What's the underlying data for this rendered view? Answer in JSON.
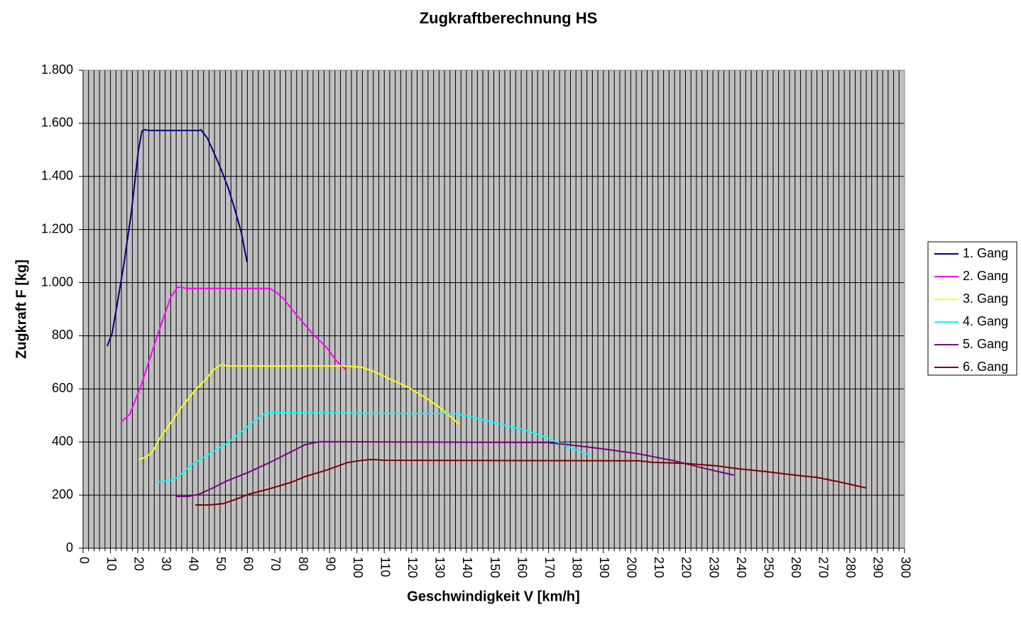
{
  "chart_data": {
    "type": "line",
    "title": "Zugkraftberechnung HS",
    "xlabel": "Geschwindigkeit V [km/h]",
    "ylabel": "Zugkraft F [kg]",
    "xlim": [
      0,
      300
    ],
    "ylim": [
      0,
      1800
    ],
    "xticks": [
      0,
      10,
      20,
      30,
      40,
      50,
      60,
      70,
      80,
      90,
      100,
      110,
      120,
      130,
      140,
      150,
      160,
      170,
      180,
      190,
      200,
      210,
      220,
      230,
      240,
      250,
      260,
      270,
      280,
      290,
      300
    ],
    "xminorticks": [
      2,
      4,
      6,
      8,
      12,
      14,
      16,
      18,
      22,
      24,
      26,
      28,
      32,
      34,
      36,
      38,
      42,
      44,
      46,
      48,
      52,
      54,
      56,
      58,
      62,
      64,
      66,
      68,
      72,
      74,
      76,
      78,
      82,
      84,
      86,
      88,
      92,
      94,
      96,
      98,
      102,
      104,
      106,
      108,
      112,
      114,
      116,
      118,
      122,
      124,
      126,
      128,
      132,
      134,
      136,
      138,
      142,
      144,
      146,
      148,
      152,
      154,
      156,
      158,
      162,
      164,
      166,
      168,
      172,
      174,
      176,
      178,
      182,
      184,
      186,
      188,
      192,
      194,
      196,
      198,
      202,
      204,
      206,
      208,
      212,
      214,
      216,
      218,
      222,
      224,
      226,
      228,
      232,
      234,
      236,
      238,
      242,
      244,
      246,
      248,
      252,
      254,
      256,
      258,
      262,
      264,
      266,
      268,
      272,
      274,
      276,
      278,
      282,
      284,
      286,
      288,
      292,
      294,
      296,
      298
    ],
    "yticks": [
      0,
      200,
      400,
      600,
      800,
      {
        "value": 1000,
        "label": "1.000"
      },
      {
        "value": 1200,
        "label": "1.200"
      },
      {
        "value": 1400,
        "label": "1.400"
      },
      {
        "value": 1600,
        "label": "1.600"
      },
      {
        "value": 1800,
        "label": "1.800"
      }
    ],
    "grid": true,
    "legend": "right",
    "series": [
      {
        "name": "1. Gang",
        "color": "#000080",
        "x": [
          8.8,
          10.6,
          12.4,
          15,
          17.6,
          20.2,
          21.5,
          22.3,
          24,
          42.3,
          43,
          45.4,
          47.4,
          50,
          53,
          55,
          57.8,
          59.9
        ],
        "values": [
          761,
          809,
          916,
          1076,
          1263,
          1498,
          1570,
          1576,
          1573,
          1573,
          1576,
          1544,
          1498,
          1437,
          1357,
          1290,
          1189,
          1076
        ]
      },
      {
        "name": "2. Gang",
        "color": "#ff00ff",
        "x": [
          13.7,
          17.1,
          21.5,
          26.7,
          31.9,
          34.5,
          35.8,
          37.6,
          68.2,
          70.8,
          73.4,
          76,
          78.6,
          83.7,
          88.9,
          92.8,
          96.2
        ],
        "values": [
          473,
          505,
          622,
          788,
          943,
          983,
          983,
          978,
          978,
          962,
          938,
          903,
          871,
          809,
          756,
          702,
          670
        ]
      },
      {
        "name": "3. Gang",
        "color": "#ffff00",
        "x": [
          20.2,
          22.8,
          25.4,
          28,
          31.9,
          35.8,
          41,
          44.9,
          47.4,
          50.6,
          52.6,
          96.7,
          101.9,
          107.1,
          112.3,
          118.7,
          125.2,
          130.4,
          134.3,
          137.4
        ],
        "values": [
          334,
          342,
          363,
          414,
          470,
          529,
          596,
          636,
          670,
          692,
          686,
          686,
          681,
          662,
          636,
          606,
          566,
          529,
          494,
          467
        ]
      },
      {
        "name": "4. Gang",
        "color": "#00ffff",
        "x": [
          26.7,
          31.9,
          34.5,
          39.7,
          47.4,
          52.6,
          59.1,
          63,
          66.9,
          69.5,
          135.6,
          140.8,
          151.2,
          161.3,
          169.3,
          177.1,
          185.2
        ],
        "values": [
          248,
          256,
          267,
          315,
          363,
          395,
          449,
          483,
          510,
          510,
          507,
          497,
          470,
          446,
          417,
          382,
          350
        ]
      },
      {
        "name": "5. Gang",
        "color": "#800080",
        "x": [
          34,
          38.4,
          42.3,
          47.4,
          52.6,
          60.4,
          68.2,
          76,
          81.1,
          86.3,
          169.3,
          177.1,
          190,
          203,
          216,
          226.3,
          237.7
        ],
        "values": [
          195,
          195,
          203,
          227,
          254,
          286,
          323,
          363,
          390,
          401,
          398,
          390,
          374,
          355,
          329,
          302,
          275
        ]
      },
      {
        "name": "6. Gang",
        "color": "#800000",
        "x": [
          41,
          46.1,
          51.3,
          55.2,
          60.4,
          68.2,
          76,
          81.1,
          88.9,
          96.7,
          101.9,
          105.8,
          109.7,
          203,
          208.3,
          218.6,
          231.5,
          239.3,
          249.7,
          260,
          267.8,
          275.6,
          286
        ],
        "values": [
          163,
          163,
          168,
          182,
          203,
          224,
          248,
          270,
          294,
          323,
          331,
          334,
          331,
          329,
          323,
          320,
          310,
          299,
          288,
          275,
          267,
          251,
          227
        ]
      }
    ]
  }
}
